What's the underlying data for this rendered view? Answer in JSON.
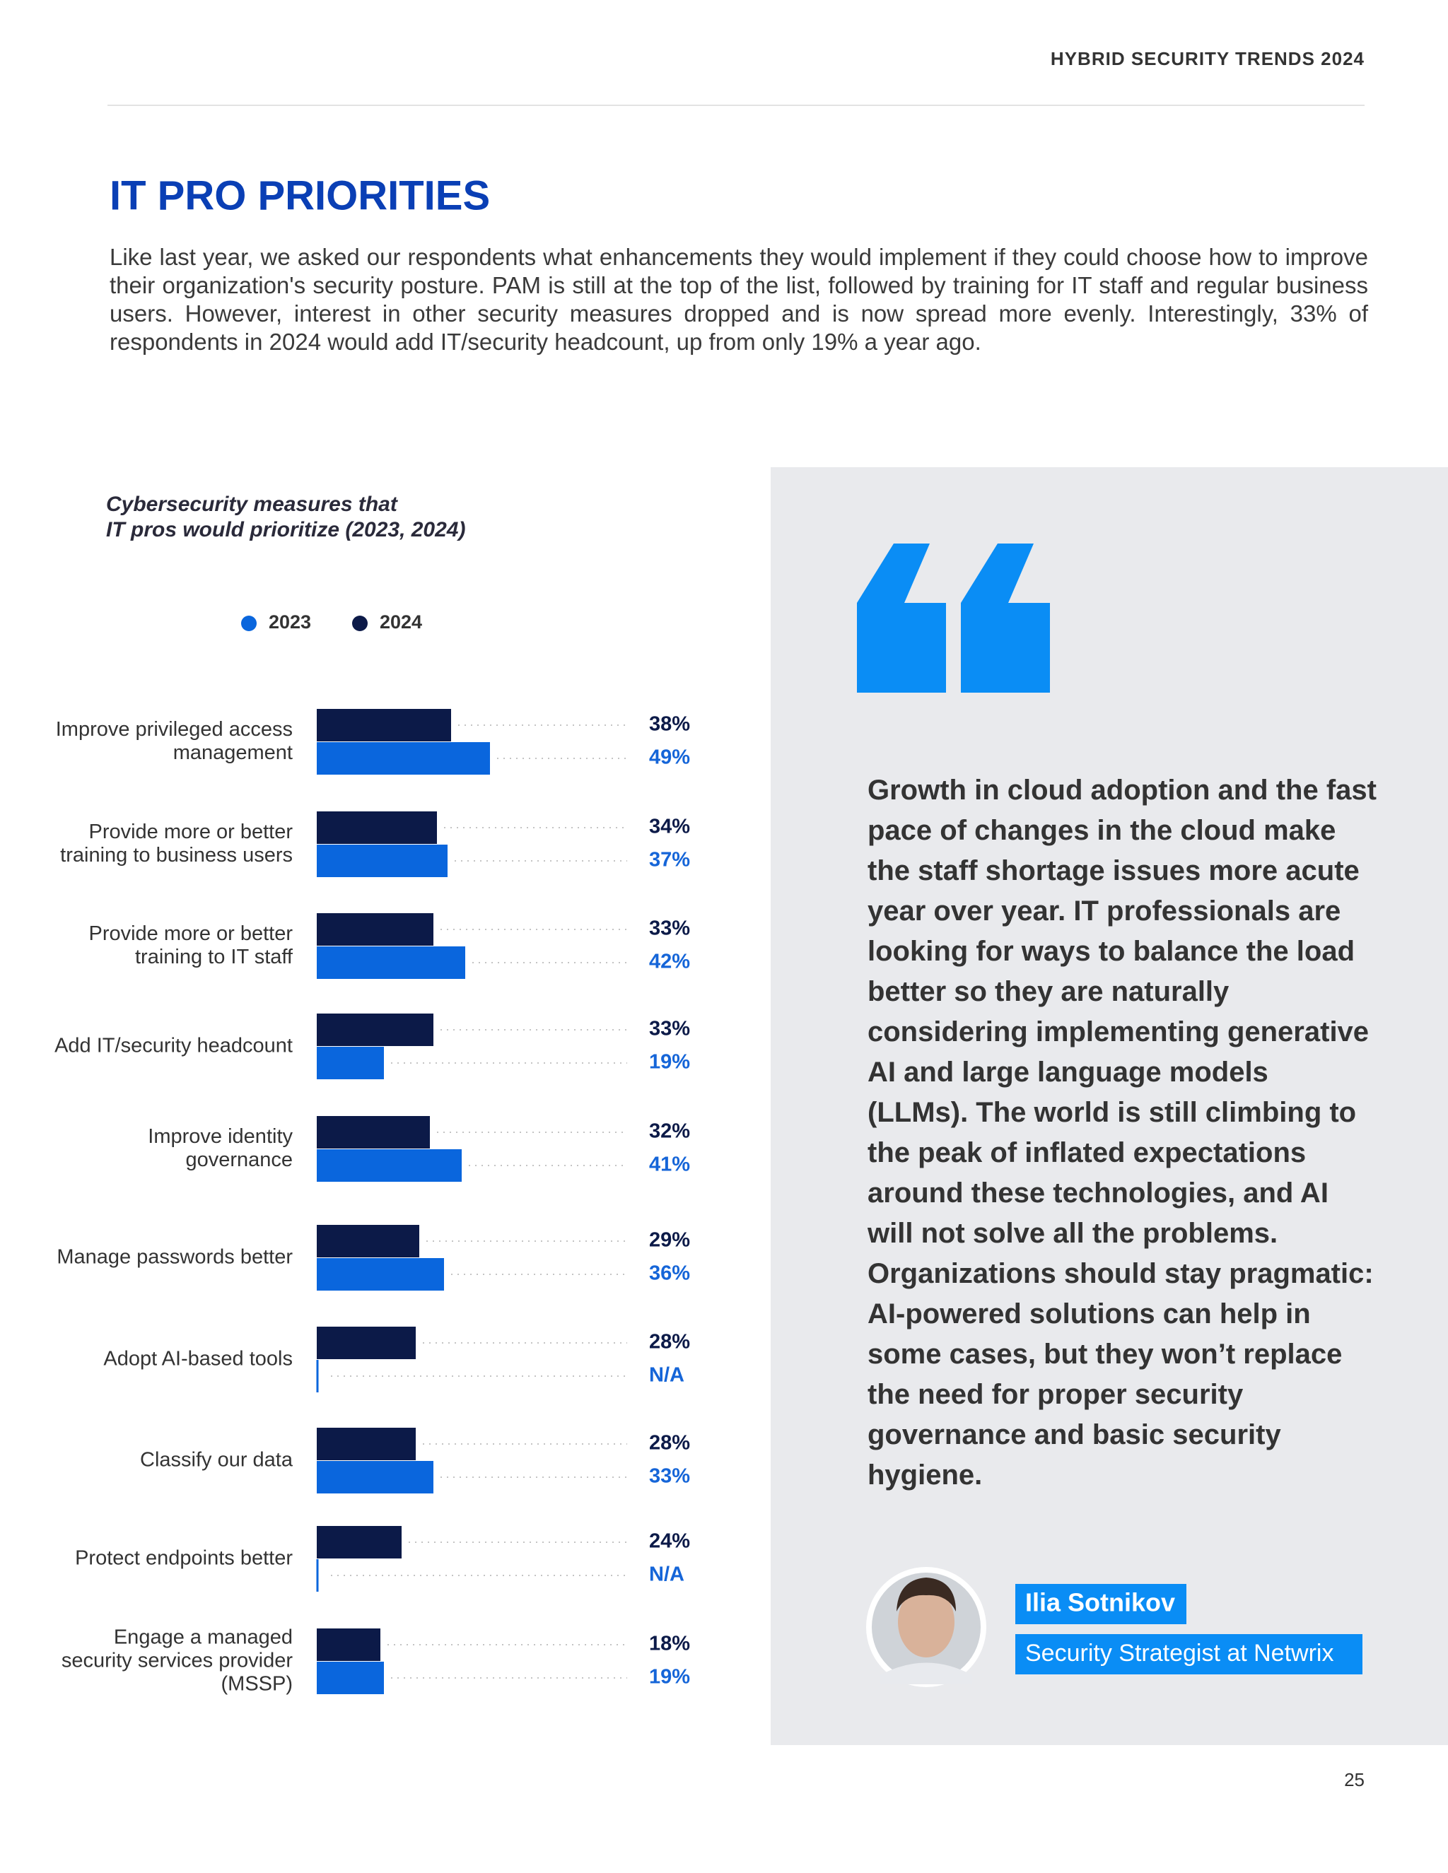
{
  "header": {
    "title": "HYBRID SECURITY TRENDS 2024"
  },
  "title": "IT PRO PRIORITIES",
  "intro": "Like last year, we asked our respondents what enhancements they would implement if they could choose how to improve their organization's security posture. PAM is still at the top of the list, followed by training for IT staff and regular business users. However, interest in other security measures dropped and is now spread more evenly. Interestingly, 33% of respondents in 2024 would add IT/security headcount, up from only 19% a year ago.",
  "chart_data": {
    "type": "bar",
    "orientation": "horizontal",
    "title": [
      "Cybersecurity measures that",
      "IT pros would prioritize (2023, 2024)"
    ],
    "categories": [
      "Improve privileged access management",
      "Provide more or better training to business users",
      "Provide more or better training to IT staff",
      "Add IT/security headcount",
      "Improve identity governance",
      "Manage passwords better",
      "Adopt AI-based tools",
      "Classify our data",
      "Protect endpoints better",
      "Engage a managed security services provider (MSSP)"
    ],
    "xlim": [
      0,
      100
    ],
    "series": [
      {
        "name": "2023",
        "color": "#0a66dd",
        "values": [
          49,
          37,
          42,
          19,
          41,
          36,
          null,
          33,
          null,
          19
        ],
        "value_labels": [
          "49%",
          "37%",
          "42%",
          "19%",
          "41%",
          "36%",
          "N/A",
          "33%",
          "N/A",
          "19%"
        ]
      },
      {
        "name": "2024",
        "color": "#0c1a48",
        "values": [
          38,
          34,
          33,
          33,
          32,
          29,
          28,
          28,
          24,
          18
        ],
        "value_labels": [
          "38%",
          "34%",
          "33%",
          "33%",
          "32%",
          "29%",
          "28%",
          "28%",
          "24%",
          "18%"
        ]
      }
    ]
  },
  "quote": {
    "text": "Growth in cloud adoption and the fast pace of changes in the cloud make the staff shortage issues more acute year over year. IT professionals are looking for ways to balance the load better so they are naturally considering implementing generative AI and large language models (LLMs). The world is still climbing to the peak of inflated expectations around these technologies, and AI will not solve all the problems. Organizations should stay pragmatic: AI-powered solutions can help in some cases, but they won’t replace the need for proper security governance and basic security hygiene.",
    "author": "Ilia Sotnikov",
    "role": "Security Strategist at Netwrix"
  },
  "page_number": "25"
}
